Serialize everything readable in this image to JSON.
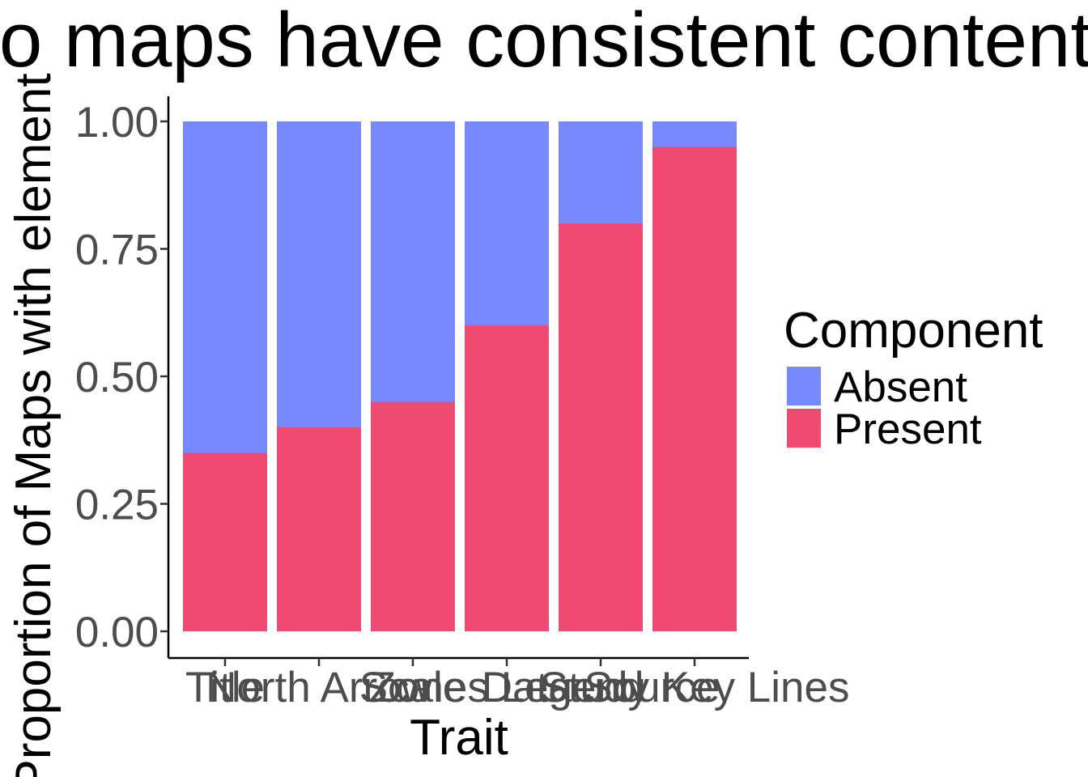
{
  "chart_data": {
    "type": "bar",
    "stacked": true,
    "title": "Do maps have consistent content?",
    "xlabel": "Trait",
    "ylabel": "Proportion of Maps with element",
    "categories": [
      "Title",
      "North Arrow",
      "Scale",
      "Zones Legend",
      "Data Source",
      "Study Key Lines"
    ],
    "series": [
      {
        "name": "Present",
        "color": "#ee4a72",
        "values": [
          0.35,
          0.4,
          0.45,
          0.6,
          0.8,
          0.95
        ]
      },
      {
        "name": "Absent",
        "color": "#7789fc",
        "values": [
          0.65,
          0.6,
          0.55,
          0.4,
          0.2,
          0.05
        ]
      }
    ],
    "yticks": [
      "0.00",
      "0.25",
      "0.50",
      "0.75",
      "1.00"
    ],
    "ylim": [
      0,
      1
    ],
    "grid": false,
    "legend": {
      "title": "Component",
      "placement": "right",
      "entries": [
        {
          "label": "Absent",
          "color": "#7789fc"
        },
        {
          "label": "Present",
          "color": "#ee4a72"
        }
      ]
    }
  }
}
